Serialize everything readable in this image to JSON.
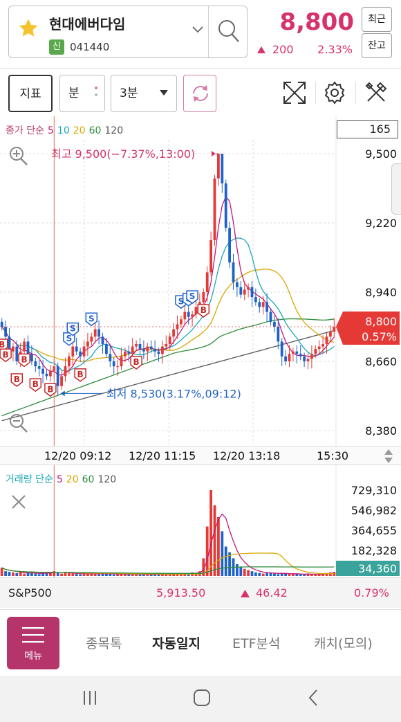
{
  "header": {
    "stock_name": "현대에버다임",
    "badge": "신",
    "stock_code": "041440",
    "price": "8,800",
    "change": "200",
    "change_pct": "2.33%",
    "recent_label": "최근",
    "balance_label": "잔고",
    "price_color": "#d6336c"
  },
  "toolbar": {
    "indicator_label": "지표",
    "minute_label": "분",
    "interval_value": "3분"
  },
  "chart_panel": {
    "ma_legend": {
      "title": "종가 단순",
      "p5": "5",
      "p10": "10",
      "p20": "20",
      "p60": "60",
      "p120": "120"
    },
    "period_count": "165",
    "y_ticks": [
      "9,500",
      "9,220",
      "8,940",
      "8,660",
      "8,380"
    ],
    "current_price_tag": "8,800",
    "current_pct_tag": "0.57%",
    "high_annotation": "최고 9,500(−7.37%,13:00)",
    "low_annotation": "최저 8,530(3.17%,09:12)",
    "buy_marker": "B",
    "sell_marker": "S",
    "colors": {
      "up": "#e53935",
      "down": "#1e62c8",
      "ma5": "#c2187c",
      "ma10": "#1aa7b5",
      "ma20": "#d8a800",
      "ma60": "#2e8b3a",
      "ma120": "#555555"
    }
  },
  "timeline": {
    "t1": "12/20 09:12",
    "t2": "12/20 11:15",
    "t3": "12/20 13:18",
    "t4": "15:30"
  },
  "volume_panel": {
    "legend": {
      "title": "거래량 단순",
      "p5": "5",
      "p20": "20",
      "p60": "60",
      "p120": "120"
    },
    "y_ticks": [
      "729,310",
      "546,982",
      "364,655",
      "182,328"
    ],
    "current_volume_tag": "34,360"
  },
  "index_bar": {
    "name": "S&P500",
    "value": "5,913.50",
    "change": "46.42",
    "pct": "0.79%"
  },
  "bottom_nav": {
    "menu_label": "메뉴",
    "tabs": [
      "종목톡",
      "자동일지",
      "ETF분석",
      "캐치(모의)"
    ]
  },
  "chart_data": {
    "type": "candlestick",
    "title": "",
    "y_range": [
      8380,
      9500
    ],
    "y_ticks": [
      9500,
      9220,
      8940,
      8660,
      8380
    ],
    "x_ticks": [
      "12/20 09:12",
      "12/20 11:15",
      "12/20 13:18",
      "15:30"
    ],
    "grid": true,
    "high": {
      "price": 9500,
      "time": "13:00"
    },
    "low": {
      "price": 8530,
      "time": "09:12"
    },
    "close": [
      8800,
      8760,
      8700,
      8720,
      8660,
      8700,
      8740,
      8690,
      8660,
      8640,
      8630,
      8610,
      8600,
      8620,
      8640,
      8560,
      8600,
      8640,
      8680,
      8720,
      8700,
      8680,
      8720,
      8740,
      8760,
      8790,
      8760,
      8730,
      8690,
      8660,
      8640,
      8640,
      8680,
      8700,
      8690,
      8720,
      8730,
      8710,
      8700,
      8720,
      8710,
      8700,
      8690,
      8720,
      8730,
      8760,
      8790,
      8810,
      8830,
      8860,
      8840,
      8850,
      8880,
      8900,
      8940,
      9020,
      9150,
      9400,
      9500,
      9380,
      9200,
      9060,
      8980,
      8960,
      8930,
      8950,
      8960,
      8920,
      8900,
      8880,
      8900,
      8860,
      8820,
      8800,
      8740,
      8680,
      8660,
      8690,
      8700,
      8690,
      8680,
      8660,
      8670,
      8690,
      8710,
      8720,
      8730,
      8760,
      8780,
      8800
    ],
    "volume": [
      70000,
      40000,
      35000,
      30000,
      25000,
      30000,
      20000,
      25000,
      30000,
      20000,
      15000,
      25000,
      30000,
      35000,
      40000,
      25000,
      20000,
      30000,
      25000,
      20000,
      18000,
      15000,
      20000,
      25000,
      20000,
      18000,
      15000,
      20000,
      25000,
      15000,
      12000,
      15000,
      20000,
      18000,
      15000,
      12000,
      15000,
      10000,
      12000,
      10000,
      15000,
      12000,
      10000,
      15000,
      12000,
      18000,
      15000,
      20000,
      25000,
      20000,
      18000,
      30000,
      25000,
      40000,
      150000,
      420000,
      729310,
      600000,
      500000,
      380000,
      250000,
      200000,
      150000,
      100000,
      80000,
      60000,
      50000,
      40000,
      30000,
      25000,
      20000,
      25000,
      30000,
      20000,
      15000,
      25000,
      20000,
      15000,
      20000,
      15000,
      12000,
      15000,
      20000,
      15000,
      12000,
      15000,
      20000,
      25000,
      30000,
      34360
    ],
    "volume_range": [
      0,
      729310
    ],
    "buy_markers": [
      "09:00",
      "09:03",
      "09:06",
      "09:09",
      "09:18",
      "09:21",
      "10:15",
      "11:06",
      "12:18"
    ],
    "sell_markers": [
      "09:51",
      "10:00",
      "10:18",
      "12:09",
      "12:27",
      "12:36"
    ]
  }
}
